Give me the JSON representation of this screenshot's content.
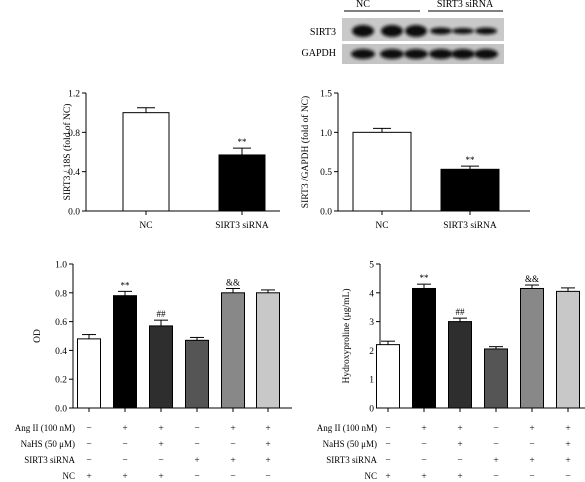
{
  "western_blot": {
    "groups": [
      "NC",
      "SIRT3 siRNA"
    ],
    "rows": [
      "SIRT3",
      "GAPDH"
    ]
  },
  "chart_data": [
    {
      "type": "bar",
      "ylabel": "SIRT3 / 18S (fold of NC)",
      "ylim": [
        0,
        1.2
      ],
      "yticks": [
        "0.0",
        "0.4",
        "0.8",
        "1.2"
      ],
      "categories": [
        "NC",
        "SIRT3 siRNA"
      ],
      "values": [
        1.0,
        0.57
      ],
      "errors": [
        0.05,
        0.07
      ],
      "bar_colors": [
        "#ffffff",
        "#000000"
      ],
      "annotations": [
        "",
        "**"
      ]
    },
    {
      "type": "bar",
      "ylabel": "SIRT3 /GAPDH (fold of NC)",
      "ylim": [
        0,
        1.5
      ],
      "yticks": [
        "0.0",
        "0.5",
        "1.0",
        "1.5"
      ],
      "categories": [
        "NC",
        "SIRT3 siRNA"
      ],
      "values": [
        1.0,
        0.53
      ],
      "errors": [
        0.05,
        0.04
      ],
      "bar_colors": [
        "#ffffff",
        "#000000"
      ],
      "annotations": [
        "",
        "**"
      ]
    },
    {
      "type": "bar",
      "ylabel": "OD",
      "ylim": [
        0,
        1.0
      ],
      "yticks": [
        "0.0",
        "0.2",
        "0.4",
        "0.6",
        "0.8",
        "1.0"
      ],
      "values": [
        0.48,
        0.78,
        0.57,
        0.47,
        0.8,
        0.8
      ],
      "errors": [
        0.03,
        0.03,
        0.04,
        0.02,
        0.03,
        0.02
      ],
      "bar_colors": [
        "#ffffff",
        "#000000",
        "#2e2e2e",
        "#555555",
        "#888888",
        "#c8c8c8"
      ],
      "annotations": [
        "",
        "**",
        "##",
        "",
        "&&",
        ""
      ],
      "conditions": [
        {
          "label": "Ang II (100 nM)",
          "marks": [
            "−",
            "+",
            "+",
            "−",
            "+",
            "+"
          ]
        },
        {
          "label": "NaHS (50 μM)",
          "marks": [
            "−",
            "−",
            "+",
            "−",
            "−",
            "+"
          ]
        },
        {
          "label": "SIRT3 siRNA",
          "marks": [
            "−",
            "−",
            "−",
            "+",
            "+",
            "+"
          ]
        },
        {
          "label": "NC",
          "marks": [
            "+",
            "+",
            "+",
            "−",
            "−",
            "−"
          ]
        }
      ]
    },
    {
      "type": "bar",
      "ylabel": "Hydroxyproline (μg/mL)",
      "ylim": [
        0,
        5
      ],
      "yticks": [
        "0",
        "1",
        "2",
        "3",
        "4",
        "5"
      ],
      "values": [
        2.2,
        4.15,
        3.0,
        2.05,
        4.15,
        4.05
      ],
      "errors": [
        0.12,
        0.15,
        0.12,
        0.08,
        0.12,
        0.12
      ],
      "bar_colors": [
        "#ffffff",
        "#000000",
        "#2e2e2e",
        "#555555",
        "#888888",
        "#c8c8c8"
      ],
      "annotations": [
        "",
        "**",
        "##",
        "",
        "&&",
        ""
      ],
      "conditions": [
        {
          "label": "Ang II (100 nM)",
          "marks": [
            "−",
            "+",
            "+",
            "−",
            "+",
            "+"
          ]
        },
        {
          "label": "NaHS (50 μM)",
          "marks": [
            "−",
            "−",
            "+",
            "−",
            "−",
            "+"
          ]
        },
        {
          "label": "SIRT3 siRNA",
          "marks": [
            "−",
            "−",
            "−",
            "+",
            "+",
            "+"
          ]
        },
        {
          "label": "NC",
          "marks": [
            "+",
            "+",
            "+",
            "−",
            "−",
            "−"
          ]
        }
      ]
    }
  ]
}
